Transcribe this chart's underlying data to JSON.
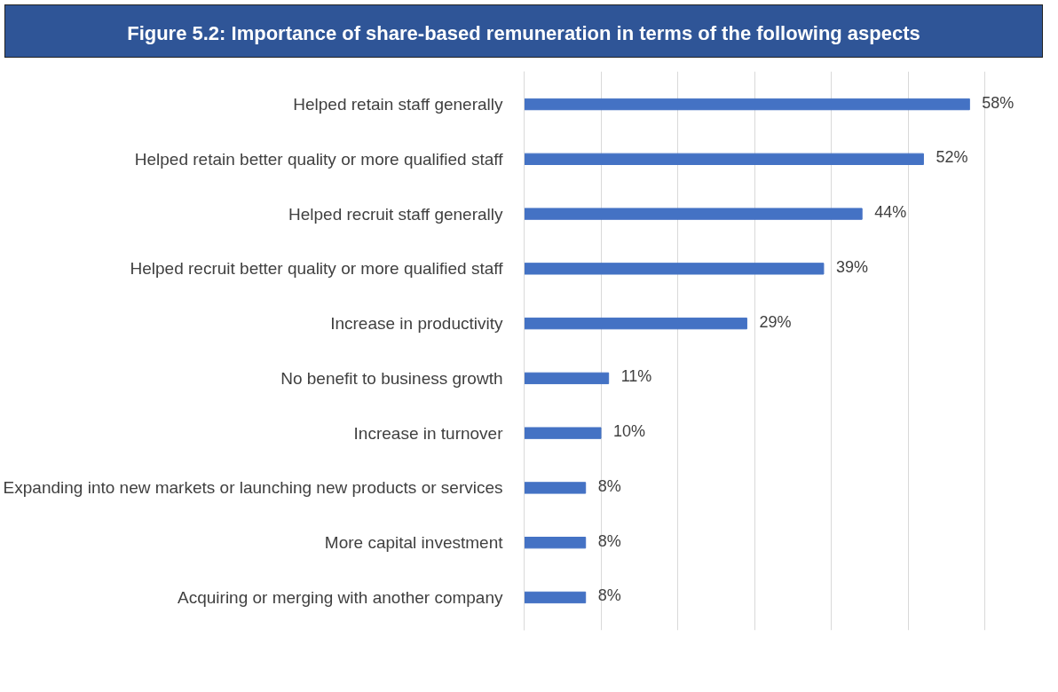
{
  "chart_data": {
    "type": "bar",
    "orientation": "horizontal",
    "title": "Figure 5.2: Importance of share-based remuneration in terms of the following aspects",
    "categories": [
      "Helped retain staff generally",
      "Helped retain better quality or more qualified staff",
      "Helped recruit staff generally",
      "Helped recruit better quality or more qualified staff",
      "Increase in productivity",
      "No benefit to business growth",
      "Increase in turnover",
      "Expanding into new markets or launching new products or services",
      "More capital investment",
      "Acquiring or merging with another company"
    ],
    "values": [
      58,
      52,
      44,
      39,
      29,
      11,
      10,
      8,
      8,
      8
    ],
    "value_labels": [
      "58%",
      "52%",
      "44%",
      "39%",
      "29%",
      "11%",
      "10%",
      "8%",
      "8%",
      "8%"
    ],
    "color": "#4472c4",
    "grid": "x",
    "tick_labels": "y"
  }
}
